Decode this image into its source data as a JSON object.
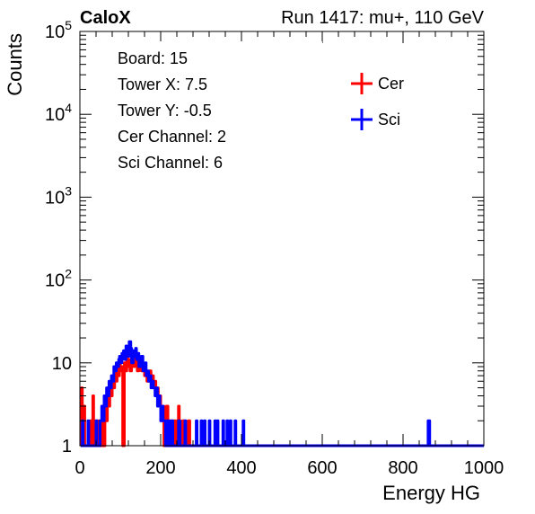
{
  "chart_data": {
    "type": "line",
    "title_left": "CaloX",
    "title_right": "Run 1417: mu+, 110 GeV",
    "xlabel": "Energy HG",
    "ylabel": "Counts",
    "xlim": [
      0,
      1000
    ],
    "ylim": [
      1,
      100000
    ],
    "yscale": "log",
    "x_ticks": [
      "0",
      "200",
      "400",
      "600",
      "800",
      "1000"
    ],
    "y_ticks": [
      {
        "value": 1,
        "base": "1",
        "exp": ""
      },
      {
        "value": 10,
        "base": "10",
        "exp": ""
      },
      {
        "value": 100,
        "base": "10",
        "exp": "2"
      },
      {
        "value": 1000,
        "base": "10",
        "exp": "3"
      },
      {
        "value": 10000,
        "base": "10",
        "exp": "4"
      },
      {
        "value": 100000,
        "base": "10",
        "exp": "5"
      }
    ],
    "info_box": [
      "Board: 15",
      "Tower X: 7.5",
      "Tower Y: -0.5",
      "Cer Channel: 2",
      "Sci Channel: 6"
    ],
    "legend_position": "top-right",
    "series": [
      {
        "name": "Cer",
        "color": "#ff0000",
        "points": [
          [
            2,
            1
          ],
          [
            4,
            5
          ],
          [
            6,
            1
          ],
          [
            10,
            3
          ],
          [
            12,
            1
          ],
          [
            20,
            1
          ],
          [
            26,
            2
          ],
          [
            28,
            1
          ],
          [
            32,
            4
          ],
          [
            34,
            1
          ],
          [
            40,
            2
          ],
          [
            44,
            1
          ],
          [
            48,
            2
          ],
          [
            52,
            1
          ],
          [
            56,
            3
          ],
          [
            58,
            1
          ],
          [
            62,
            4
          ],
          [
            64,
            2
          ],
          [
            68,
            5
          ],
          [
            70,
            3
          ],
          [
            74,
            6
          ],
          [
            76,
            4
          ],
          [
            80,
            7
          ],
          [
            82,
            5
          ],
          [
            86,
            8
          ],
          [
            88,
            6
          ],
          [
            92,
            9
          ],
          [
            94,
            7
          ],
          [
            98,
            10
          ],
          [
            100,
            8
          ],
          [
            104,
            9
          ],
          [
            106,
            1
          ],
          [
            110,
            10
          ],
          [
            112,
            8
          ],
          [
            116,
            12
          ],
          [
            118,
            9
          ],
          [
            122,
            11
          ],
          [
            124,
            8
          ],
          [
            128,
            10
          ],
          [
            130,
            12
          ],
          [
            134,
            9
          ],
          [
            136,
            13
          ],
          [
            140,
            11
          ],
          [
            142,
            8
          ],
          [
            146,
            10
          ],
          [
            148,
            9
          ],
          [
            152,
            8
          ],
          [
            154,
            10
          ],
          [
            158,
            9
          ],
          [
            160,
            7
          ],
          [
            164,
            8
          ],
          [
            166,
            6
          ],
          [
            170,
            7
          ],
          [
            172,
            8
          ],
          [
            176,
            6
          ],
          [
            178,
            7
          ],
          [
            182,
            5
          ],
          [
            184,
            6
          ],
          [
            188,
            4
          ],
          [
            190,
            5
          ],
          [
            194,
            3
          ],
          [
            196,
            4
          ],
          [
            200,
            2
          ],
          [
            202,
            3
          ],
          [
            206,
            3
          ],
          [
            208,
            1
          ],
          [
            212,
            2
          ],
          [
            214,
            3
          ],
          [
            218,
            2
          ],
          [
            220,
            1
          ],
          [
            224,
            1
          ],
          [
            226,
            2
          ],
          [
            230,
            1
          ],
          [
            234,
            2
          ],
          [
            236,
            1
          ],
          [
            240,
            2
          ],
          [
            244,
            3
          ],
          [
            246,
            1
          ],
          [
            250,
            1
          ],
          [
            254,
            2
          ],
          [
            260,
            1
          ],
          [
            264,
            1
          ],
          [
            268,
            2
          ],
          [
            272,
            1
          ],
          [
            276,
            1
          ],
          [
            1000,
            1
          ]
        ]
      },
      {
        "name": "Sci",
        "color": "#0000ff",
        "points": [
          [
            2,
            1
          ],
          [
            6,
            2
          ],
          [
            8,
            1
          ],
          [
            16,
            1
          ],
          [
            20,
            2
          ],
          [
            22,
            1
          ],
          [
            28,
            1
          ],
          [
            36,
            1
          ],
          [
            40,
            2
          ],
          [
            42,
            1
          ],
          [
            46,
            1
          ],
          [
            50,
            2
          ],
          [
            54,
            3
          ],
          [
            56,
            2
          ],
          [
            60,
            4
          ],
          [
            62,
            3
          ],
          [
            66,
            5
          ],
          [
            68,
            4
          ],
          [
            72,
            6
          ],
          [
            74,
            5
          ],
          [
            78,
            7
          ],
          [
            80,
            6
          ],
          [
            84,
            9
          ],
          [
            86,
            8
          ],
          [
            90,
            10
          ],
          [
            92,
            9
          ],
          [
            96,
            11
          ],
          [
            98,
            12
          ],
          [
            102,
            10
          ],
          [
            104,
            13
          ],
          [
            108,
            14
          ],
          [
            110,
            11
          ],
          [
            114,
            16
          ],
          [
            116,
            13
          ],
          [
            120,
            12
          ],
          [
            122,
            18
          ],
          [
            126,
            15
          ],
          [
            128,
            10
          ],
          [
            132,
            14
          ],
          [
            134,
            12
          ],
          [
            138,
            15
          ],
          [
            140,
            11
          ],
          [
            144,
            13
          ],
          [
            146,
            9
          ],
          [
            150,
            10
          ],
          [
            152,
            12
          ],
          [
            156,
            8
          ],
          [
            158,
            9
          ],
          [
            162,
            10
          ],
          [
            164,
            7
          ],
          [
            168,
            8
          ],
          [
            170,
            6
          ],
          [
            174,
            7
          ],
          [
            176,
            5
          ],
          [
            180,
            6
          ],
          [
            182,
            5
          ],
          [
            186,
            4
          ],
          [
            188,
            5
          ],
          [
            192,
            3
          ],
          [
            194,
            4
          ],
          [
            198,
            3
          ],
          [
            200,
            2
          ],
          [
            204,
            3
          ],
          [
            206,
            2
          ],
          [
            210,
            2
          ],
          [
            212,
            1
          ],
          [
            216,
            2
          ],
          [
            218,
            1
          ],
          [
            222,
            2
          ],
          [
            224,
            1
          ],
          [
            228,
            2
          ],
          [
            230,
            1
          ],
          [
            240,
            1
          ],
          [
            244,
            2
          ],
          [
            248,
            1
          ],
          [
            252,
            1
          ],
          [
            260,
            2
          ],
          [
            262,
            1
          ],
          [
            270,
            1
          ],
          [
            284,
            1
          ],
          [
            288,
            2
          ],
          [
            290,
            1
          ],
          [
            296,
            1
          ],
          [
            300,
            2
          ],
          [
            302,
            1
          ],
          [
            308,
            2
          ],
          [
            310,
            1
          ],
          [
            316,
            1
          ],
          [
            320,
            2
          ],
          [
            322,
            1
          ],
          [
            330,
            1
          ],
          [
            334,
            2
          ],
          [
            336,
            1
          ],
          [
            340,
            2
          ],
          [
            342,
            1
          ],
          [
            350,
            1
          ],
          [
            354,
            2
          ],
          [
            356,
            1
          ],
          [
            360,
            1
          ],
          [
            364,
            2
          ],
          [
            366,
            1
          ],
          [
            372,
            2
          ],
          [
            374,
            1
          ],
          [
            380,
            1
          ],
          [
            384,
            2
          ],
          [
            386,
            1
          ],
          [
            400,
            1
          ],
          [
            404,
            2
          ],
          [
            406,
            1
          ],
          [
            860,
            1
          ],
          [
            862,
            2
          ],
          [
            864,
            2
          ],
          [
            866,
            1
          ],
          [
            1000,
            1
          ]
        ]
      }
    ]
  }
}
